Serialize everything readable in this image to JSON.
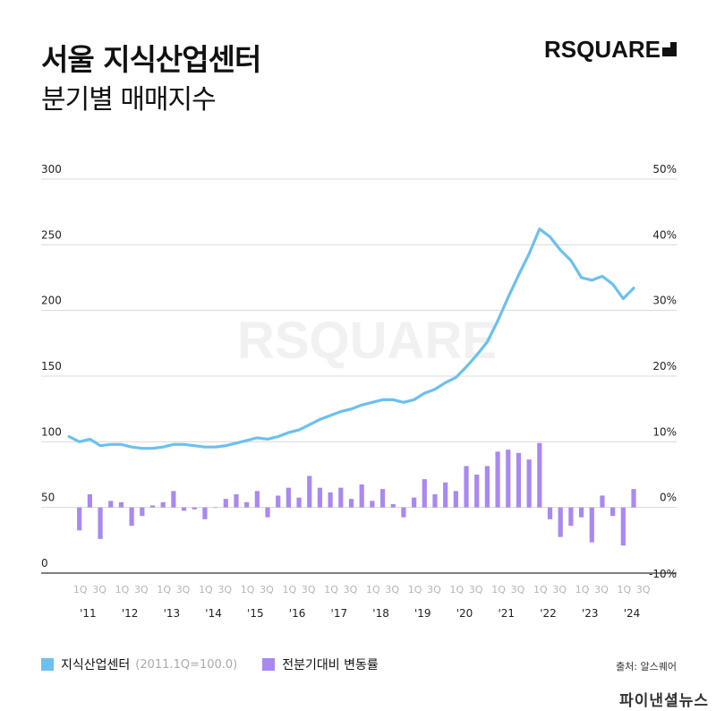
{
  "header": {
    "title_line1": "서울 지식산업센터",
    "title_line2": "분기별 매매지수",
    "brand": "RSQUARE"
  },
  "legend": {
    "line_label": "지식산업센터",
    "line_note": "(2011.1Q=100.0)",
    "bar_label": "전분기대비 변동률"
  },
  "source": "출처: 알스퀘어",
  "footer_watermark": "파이낸셜뉴스",
  "chart_data": {
    "type": "line+bar",
    "watermark": "RSQUARE",
    "left_axis": {
      "ticks": [
        "300",
        "250",
        "200",
        "150",
        "100",
        "50",
        "0"
      ],
      "range": [
        0,
        300
      ]
    },
    "right_axis": {
      "ticks": [
        "50%",
        "40%",
        "30%",
        "20%",
        "10%",
        "0%",
        "-10%"
      ],
      "range": [
        -10,
        50
      ]
    },
    "quarter_ticks": [
      "1Q",
      "3Q"
    ],
    "years": [
      "'11",
      "'12",
      "'13",
      "'14",
      "'15",
      "'16",
      "'17",
      "'18",
      "'19",
      "'20",
      "'21",
      "'22",
      "'23",
      "'24"
    ],
    "colors": {
      "line": "#6cc0ee",
      "bar": "#a988f2",
      "grid": "#d8d8d8",
      "axis": "#333333"
    },
    "series": [
      {
        "name": "지식산업센터",
        "axis": "left",
        "type": "line",
        "values": [
          104,
          100,
          102,
          97,
          98,
          98,
          96,
          95,
          95,
          96,
          98,
          98,
          97,
          96,
          96,
          97,
          99,
          101,
          103,
          102,
          104,
          107,
          109,
          113,
          117,
          120,
          123,
          125,
          128,
          130,
          132,
          132,
          130,
          132,
          137,
          140,
          145,
          149,
          157,
          166,
          176,
          192,
          210,
          227,
          243,
          262,
          256,
          246,
          238,
          225,
          223,
          226,
          220,
          209,
          217
        ]
      },
      {
        "name": "전분기대비 변동률",
        "axis": "right",
        "type": "bar",
        "values": [
          -3.5,
          2.0,
          -4.8,
          1.0,
          0.8,
          -2.8,
          -1.3,
          0.3,
          0.8,
          2.5,
          -0.5,
          -0.3,
          -1.8,
          0,
          1.3,
          2.0,
          0.8,
          2.5,
          -1.5,
          1.8,
          3.0,
          1.5,
          4.8,
          3.0,
          2.3,
          3.0,
          1.3,
          3.5,
          1.0,
          2.8,
          0.5,
          -1.5,
          1.5,
          4.3,
          2.0,
          3.8,
          2.5,
          6.3,
          5.0,
          6.3,
          8.5,
          8.8,
          8.3,
          7.3,
          9.8,
          -1.8,
          -4.5,
          -2.8,
          -1.5,
          -5.3,
          1.8,
          -1.3,
          -5.8,
          2.8
        ]
      }
    ]
  }
}
